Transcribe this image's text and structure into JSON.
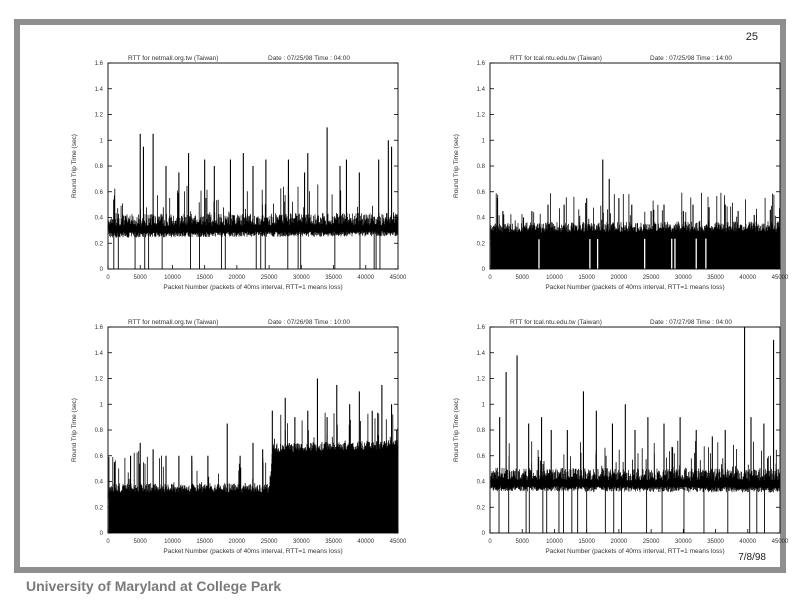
{
  "slide": {
    "page_number": "25",
    "date": "7/8/98",
    "footer": "University of Maryland at College Park"
  },
  "colors": {
    "frame": "#8f8f8f",
    "ink": "#000000",
    "footer": "#7a7a7a"
  },
  "chart_data": [
    {
      "type": "line",
      "title": "RTT for netmall.org.tw (Taiwan)",
      "date_time": "Date : 07/25/98    Time : 04:00",
      "xlabel": "Packet Number (packets of 40ms interval, RTT=1 means loss)",
      "ylabel": "Round Trip Time (sec)",
      "xlim": [
        0,
        45000
      ],
      "ylim": [
        0,
        1.6
      ],
      "x_ticks": [
        "0",
        "5000",
        "10000",
        "15000",
        "20000",
        "25000",
        "30000",
        "35000",
        "40000",
        "45000"
      ],
      "y_ticks": [
        "0",
        "0.2",
        "0.4",
        "0.6",
        "0.8",
        "1",
        "1.2",
        "1.4",
        "1.6"
      ],
      "series": [
        {
          "baseline": [
            [
              0,
              0.3
            ],
            [
              45000,
              0.31
            ]
          ],
          "band": 0.08,
          "spikes": [
            [
              5000,
              1.05
            ],
            [
              5500,
              0.95
            ],
            [
              7000,
              1.05
            ],
            [
              9000,
              0.8
            ],
            [
              11000,
              0.75
            ],
            [
              12500,
              0.9
            ],
            [
              15000,
              0.85
            ],
            [
              16500,
              0.8
            ],
            [
              19000,
              0.85
            ],
            [
              21000,
              0.9
            ],
            [
              22500,
              0.8
            ],
            [
              24500,
              0.85
            ],
            [
              28000,
              0.85
            ],
            [
              30500,
              0.75
            ],
            [
              31000,
              0.9
            ],
            [
              34000,
              1.1
            ],
            [
              36000,
              0.8
            ],
            [
              37000,
              0.85
            ],
            [
              39000,
              0.75
            ],
            [
              42000,
              0.85
            ],
            [
              43500,
              1.0
            ],
            [
              44000,
              0.95
            ]
          ],
          "losses": [
            900,
            1600,
            4200,
            5700,
            6300,
            8400,
            12800,
            14200,
            17600,
            18200,
            23000,
            23700,
            24400,
            27900,
            29500,
            29900,
            35200,
            39100,
            41300,
            41600,
            42200
          ]
        }
      ]
    },
    {
      "type": "line",
      "title": "RTT for tcal.ntu.edu.tw (Taiwan)",
      "date_time": "Date : 07/25/98    Time : 14:00",
      "xlabel": "Packet Number (packets of 40ms interval, RTT=1 means loss)",
      "ylabel": "Round Trip Time (sec)",
      "xlim": [
        0,
        45000
      ],
      "ylim": [
        0,
        1.6
      ],
      "x_ticks": [
        "0",
        "5000",
        "10000",
        "15000",
        "20000",
        "25000",
        "30000",
        "35000",
        "40000",
        "45000"
      ],
      "y_ticks": [
        "0",
        "0.2",
        "0.4",
        "0.6",
        "0.8",
        "1",
        "1.2",
        "1.4",
        "1.6"
      ],
      "series": [
        {
          "baseline": [
            [
              0,
              0.25
            ],
            [
              45000,
              0.26
            ]
          ],
          "band": 0.07,
          "spikes": [
            [
              2000,
              0.45
            ],
            [
              5200,
              0.4
            ],
            [
              6500,
              0.45
            ],
            [
              9000,
              0.5
            ],
            [
              11500,
              0.5
            ],
            [
              15000,
              0.55
            ],
            [
              17500,
              0.85
            ],
            [
              18500,
              0.7
            ],
            [
              20000,
              0.55
            ],
            [
              22000,
              0.5
            ],
            [
              25000,
              0.45
            ],
            [
              27000,
              0.5
            ],
            [
              30000,
              0.45
            ],
            [
              31500,
              0.5
            ],
            [
              34000,
              0.48
            ],
            [
              36500,
              0.5
            ],
            [
              38500,
              0.45
            ],
            [
              41000,
              0.42
            ],
            [
              43500,
              0.46
            ]
          ],
          "losses": [
            7600,
            15500,
            16700,
            24000,
            28200,
            28700,
            32000,
            33500
          ]
        }
      ]
    },
    {
      "type": "line",
      "title": "RTT for netmall.org.tw (Taiwan)",
      "date_time": "Date : 07/26/98    Time : 10:00",
      "xlabel": "Packet Number (packets of 40ms interval, RTT=1 means loss)",
      "ylabel": "Round Trip Time (sec)",
      "xlim": [
        0,
        45000
      ],
      "ylim": [
        0,
        1.6
      ],
      "x_ticks": [
        "0",
        "5000",
        "10000",
        "15000",
        "20000",
        "25000",
        "30000",
        "35000",
        "40000",
        "45000"
      ],
      "y_ticks": [
        "0",
        "0.2",
        "0.4",
        "0.6",
        "0.8",
        "1",
        "1.2",
        "1.4",
        "1.6"
      ],
      "series": [
        {
          "baseline": [
            [
              0,
              0.29
            ],
            [
              25000,
              0.29
            ],
            [
              25600,
              0.6
            ],
            [
              45000,
              0.63
            ]
          ],
          "band": 0.06,
          "spikes": [
            [
              1000,
              0.55
            ],
            [
              3500,
              0.6
            ],
            [
              5000,
              0.7
            ],
            [
              7000,
              0.65
            ],
            [
              9000,
              0.6
            ],
            [
              11000,
              0.6
            ],
            [
              13000,
              0.6
            ],
            [
              15500,
              0.6
            ],
            [
              18500,
              0.85
            ],
            [
              20500,
              0.6
            ],
            [
              22500,
              0.7
            ],
            [
              24000,
              0.65
            ],
            [
              25500,
              0.95
            ],
            [
              27500,
              1.05
            ],
            [
              29000,
              0.9
            ],
            [
              31000,
              0.95
            ],
            [
              32500,
              1.2
            ],
            [
              34000,
              0.9
            ],
            [
              35500,
              1.15
            ],
            [
              37500,
              1.0
            ],
            [
              39000,
              1.1
            ],
            [
              41000,
              0.95
            ],
            [
              42500,
              1.15
            ],
            [
              44000,
              1.0
            ]
          ],
          "losses": []
        }
      ]
    },
    {
      "type": "line",
      "title": "RTT for tcal.ntu.edu.tw (Taiwan)",
      "date_time": "Date : 07/27/98    Time : 04:00",
      "xlabel": "Packet Number (packets of 40ms interval, RTT=1 means loss)",
      "ylabel": "Round Trip Time (sec)",
      "xlim": [
        0,
        45000
      ],
      "ylim": [
        0,
        1.6
      ],
      "x_ticks": [
        "0",
        "5000",
        "10000",
        "15000",
        "20000",
        "25000",
        "30000",
        "35000",
        "40000",
        "45000"
      ],
      "y_ticks": [
        "0",
        "0.2",
        "0.4",
        "0.6",
        "0.8",
        "1",
        "1.2",
        "1.4",
        "1.6"
      ],
      "series": [
        {
          "baseline": [
            [
              0,
              0.38
            ],
            [
              45000,
              0.37
            ]
          ],
          "band": 0.08,
          "spikes": [
            [
              1500,
              0.9
            ],
            [
              2500,
              1.25
            ],
            [
              4200,
              1.38
            ],
            [
              6000,
              0.85
            ],
            [
              8000,
              0.9
            ],
            [
              9500,
              0.8
            ],
            [
              12000,
              0.8
            ],
            [
              14500,
              1.1
            ],
            [
              16500,
              0.95
            ],
            [
              19000,
              0.85
            ],
            [
              21000,
              1.0
            ],
            [
              22500,
              0.8
            ],
            [
              24500,
              0.9
            ],
            [
              27000,
              0.85
            ],
            [
              29500,
              0.9
            ],
            [
              32000,
              0.8
            ],
            [
              34500,
              0.75
            ],
            [
              36500,
              0.8
            ],
            [
              39500,
              1.6
            ],
            [
              40500,
              0.9
            ],
            [
              42500,
              0.85
            ],
            [
              44000,
              1.5
            ]
          ],
          "losses": [
            1400,
            2900,
            5600,
            6100,
            8200,
            8800,
            10700,
            11400,
            12700,
            13600,
            15000,
            17900,
            19200,
            20400,
            24300,
            26700,
            30100,
            33200,
            36900,
            40300,
            41400,
            42600
          ]
        }
      ]
    }
  ]
}
